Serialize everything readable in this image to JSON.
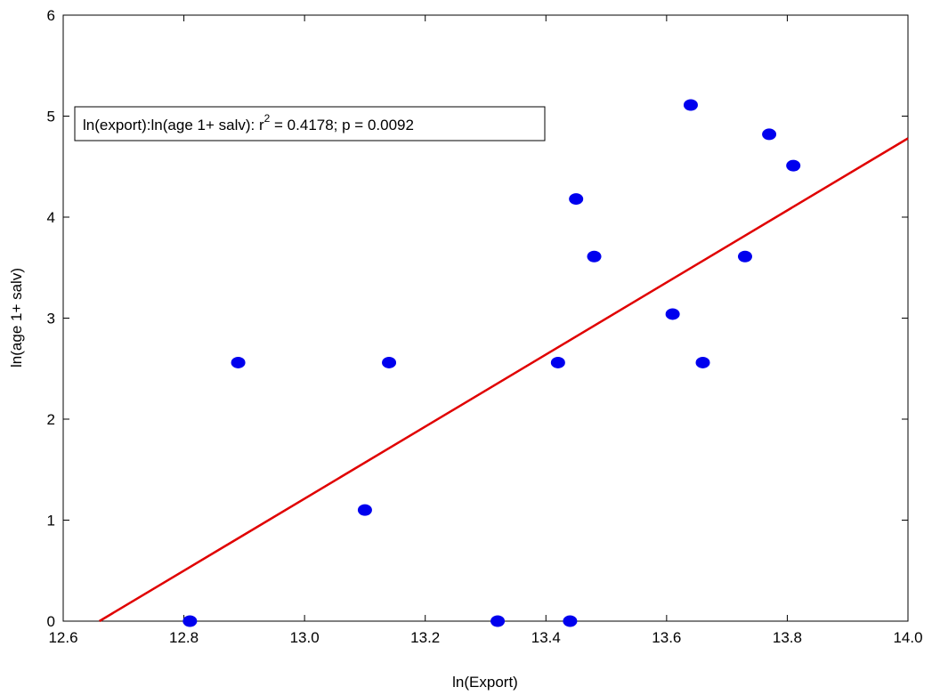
{
  "chart_data": {
    "type": "scatter",
    "xlabel": "ln(Export)",
    "ylabel": "ln(age 1+ salv)",
    "xlim": [
      12.6,
      14.0
    ],
    "ylim": [
      0,
      6
    ],
    "x_ticks": [
      "12.6",
      "12.8",
      "13.0",
      "13.2",
      "13.4",
      "13.6",
      "13.8",
      "14.0"
    ],
    "y_ticks": [
      "0",
      "1",
      "2",
      "3",
      "4",
      "5",
      "6"
    ],
    "grid": false,
    "points": [
      {
        "x": 12.81,
        "y": 0.0
      },
      {
        "x": 12.89,
        "y": 2.56
      },
      {
        "x": 13.1,
        "y": 1.1
      },
      {
        "x": 13.14,
        "y": 2.56
      },
      {
        "x": 13.32,
        "y": 0.0
      },
      {
        "x": 13.42,
        "y": 2.56
      },
      {
        "x": 13.44,
        "y": 0.0
      },
      {
        "x": 13.45,
        "y": 4.18
      },
      {
        "x": 13.48,
        "y": 3.61
      },
      {
        "x": 13.61,
        "y": 3.04
      },
      {
        "x": 13.64,
        "y": 5.11
      },
      {
        "x": 13.66,
        "y": 2.56
      },
      {
        "x": 13.73,
        "y": 3.61
      },
      {
        "x": 13.77,
        "y": 4.82
      },
      {
        "x": 13.81,
        "y": 4.51
      }
    ],
    "fit_line": {
      "x0": 12.66,
      "y0": 0.0,
      "x1": 14.0,
      "y1": 4.78,
      "color": "#e00000"
    },
    "point_color": "#0000ee",
    "annotation": {
      "prefix": "ln(export):ln(age 1+ salv):  r",
      "sup": "2",
      "suffix": " = 0.4178;  p = 0.0092",
      "placement": "top-left"
    }
  }
}
